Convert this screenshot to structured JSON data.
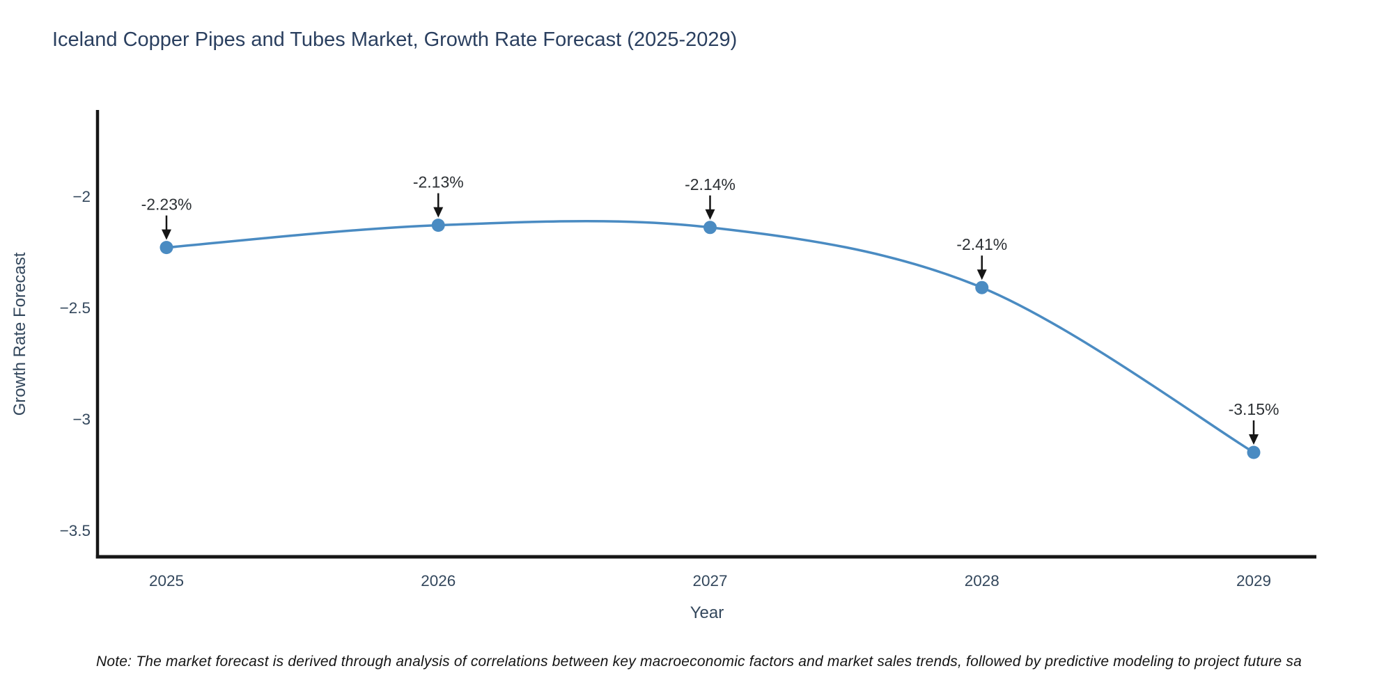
{
  "title": "Iceland Copper Pipes and Tubes Market, Growth Rate Forecast (2025-2029)",
  "note": "Note: The market forecast is derived through analysis of correlations between key macroeconomic factors and market sales trends, followed by predictive modeling to project future sa",
  "chart_data": {
    "type": "line",
    "title": "Iceland Copper Pipes and Tubes Market, Growth Rate Forecast (2025-2029)",
    "xlabel": "Year",
    "ylabel": "Growth Rate Forecast",
    "unit": "%",
    "categories": [
      2025,
      2026,
      2027,
      2028,
      2029
    ],
    "values": [
      -2.23,
      -2.13,
      -2.14,
      -2.41,
      -3.15
    ],
    "point_labels": [
      "-2.23%",
      "-2.13%",
      "-2.14%",
      "-2.41%",
      "-3.15%"
    ],
    "xtick_labels": [
      "2025",
      "2026",
      "2027",
      "2028",
      "2029"
    ],
    "yticks": [
      -2,
      -2.5,
      -3,
      -3.5
    ],
    "ytick_labels": [
      "−2",
      "−2.5",
      "−3",
      "−3.5"
    ],
    "ylim": [
      -3.62,
      -1.61
    ],
    "line_shape": "spline",
    "grid": false,
    "legend": false,
    "line_color": "#4a8bc2",
    "marker_color": "#4a8bc2",
    "annotation_color": "#151515",
    "title_color": "#2a3f5f"
  }
}
